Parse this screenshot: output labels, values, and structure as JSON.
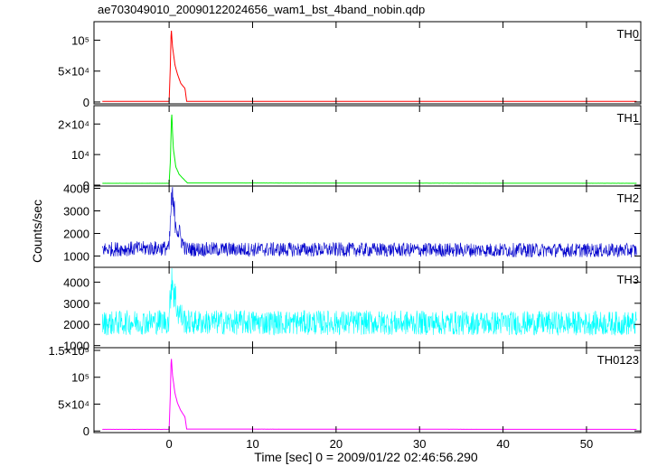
{
  "title": "ae703049010_20090122024656_wam1_bst_4band_nobin.qdp",
  "chart_data": {
    "type": "line",
    "title": "ae703049010_20090122024656_wam1_bst_4band_nobin.qdp",
    "xlabel": "Time [sec] 0 = 2009/01/22 02:46:56.290",
    "ylabel": "Counts/sec",
    "xlim": [
      -9,
      56.5
    ],
    "xticks": [
      0,
      10,
      20,
      30,
      40,
      50
    ],
    "grid": false,
    "panels": [
      {
        "name": "TH0",
        "color": "#ff0000",
        "ylim": [
          -3000,
          130000
        ],
        "yticks": [
          {
            "v": 0,
            "label": "0"
          },
          {
            "v": 50000,
            "label": "5×10⁴"
          },
          {
            "v": 100000,
            "label": "10⁵"
          }
        ],
        "points": [
          [
            -8,
            1000
          ],
          [
            0,
            1000
          ],
          [
            0.15,
            60000
          ],
          [
            0.25,
            120000
          ],
          [
            0.4,
            90000
          ],
          [
            0.7,
            60000
          ],
          [
            1.0,
            45000
          ],
          [
            1.4,
            30000
          ],
          [
            1.9,
            22000
          ],
          [
            2.1,
            1000
          ],
          [
            56,
            1000
          ]
        ]
      },
      {
        "name": "TH1",
        "color": "#00ee00",
        "ylim": [
          -300,
          26000
        ],
        "yticks": [
          {
            "v": 0,
            "label": "0"
          },
          {
            "v": 10000,
            "label": "10⁴"
          },
          {
            "v": 20000,
            "label": "2×10⁴"
          }
        ],
        "points": [
          [
            -8,
            600
          ],
          [
            0,
            600
          ],
          [
            0.15,
            8000
          ],
          [
            0.3,
            24000
          ],
          [
            0.5,
            12000
          ],
          [
            0.8,
            6000
          ],
          [
            1.2,
            3500
          ],
          [
            1.8,
            1800
          ],
          [
            2.2,
            700
          ],
          [
            56,
            600
          ]
        ]
      },
      {
        "name": "TH2",
        "color": "#0000cc",
        "ylim": [
          500,
          4100
        ],
        "yticks": [
          {
            "v": 1000,
            "label": "1000"
          },
          {
            "v": 2000,
            "label": "2000"
          },
          {
            "v": 3000,
            "label": "3000"
          },
          {
            "v": 4000,
            "label": "4000"
          }
        ],
        "points": [
          [
            -8,
            1300
          ],
          [
            0,
            1350
          ],
          [
            0.3,
            3600
          ],
          [
            0.6,
            2900
          ],
          [
            1.0,
            2200
          ],
          [
            1.6,
            1600
          ],
          [
            2.0,
            1300
          ],
          [
            56,
            1250
          ]
        ]
      },
      {
        "name": "TH3",
        "color": "#00ffff",
        "ylim": [
          900,
          4700
        ],
        "yticks": [
          {
            "v": 1000,
            "label": "1000"
          },
          {
            "v": 2000,
            "label": "2000"
          },
          {
            "v": 3000,
            "label": "3000"
          },
          {
            "v": 4000,
            "label": "4000"
          }
        ],
        "points": [
          [
            -8,
            2050
          ],
          [
            0,
            2150
          ],
          [
            0.3,
            4500
          ],
          [
            0.6,
            3500
          ],
          [
            1.0,
            2700
          ],
          [
            1.6,
            2300
          ],
          [
            2.0,
            2100
          ],
          [
            56,
            2050
          ]
        ]
      },
      {
        "name": "TH0123",
        "color": "#ff00ff",
        "ylim": [
          -3000,
          155000
        ],
        "yticks": [
          {
            "v": 0,
            "label": "0"
          },
          {
            "v": 50000,
            "label": "5×10⁴"
          },
          {
            "v": 100000,
            "label": "10⁵"
          },
          {
            "v": 150000,
            "label": "1.5×10⁵"
          }
        ],
        "points": [
          [
            -8,
            3000
          ],
          [
            0,
            3000
          ],
          [
            0.15,
            70000
          ],
          [
            0.25,
            140000
          ],
          [
            0.4,
            105000
          ],
          [
            0.7,
            70000
          ],
          [
            1.0,
            52000
          ],
          [
            1.4,
            38000
          ],
          [
            1.9,
            26000
          ],
          [
            2.1,
            3500
          ],
          [
            56,
            3000
          ]
        ]
      }
    ]
  }
}
